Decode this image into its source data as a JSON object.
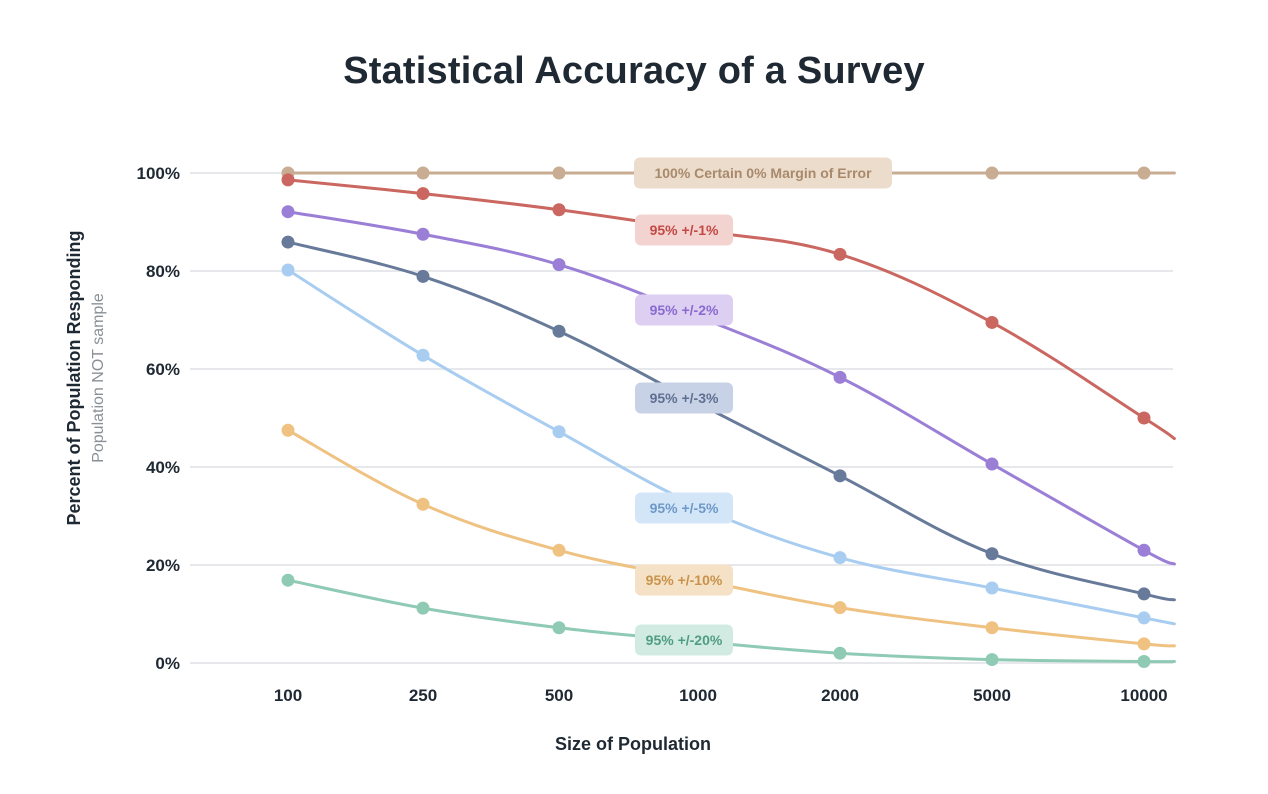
{
  "chart_data": {
    "type": "line",
    "title": "Statistical Accuracy of a Survey",
    "xlabel": "Size of Population",
    "ylabel": "Percent of Population Responding",
    "ylabel_secondary": "Population NOT sample",
    "categories": [
      "100",
      "250",
      "500",
      "1000",
      "2000",
      "5000",
      "10000"
    ],
    "y_ticks": [
      "0%",
      "20%",
      "40%",
      "60%",
      "80%",
      "100%"
    ],
    "ylim": [
      0,
      100
    ],
    "grid": true,
    "series": [
      {
        "name": "100% Certain 0% Margin of Error",
        "color": "#c9ad93",
        "label_bg": "#ecdccc",
        "label_color": "#a8896c",
        "marker_points": [
          [
            0,
            100
          ],
          [
            1,
            100
          ],
          [
            2,
            100
          ],
          [
            5,
            100
          ],
          [
            6,
            100
          ]
        ],
        "line_points": [
          [
            0,
            100
          ],
          [
            1,
            100
          ],
          [
            2,
            100
          ],
          [
            3,
            100
          ],
          [
            4,
            100
          ],
          [
            5,
            100
          ],
          [
            6,
            100
          ],
          [
            6.2,
            100
          ]
        ]
      },
      {
        "name": "95% +/-1%",
        "color": "#cb6761",
        "label_bg": "#f3d3d0",
        "label_color": "#c24944",
        "marker_points": [
          [
            0,
            98.6
          ],
          [
            1,
            95.8
          ],
          [
            2,
            92.5
          ],
          [
            4,
            83.4
          ],
          [
            5,
            69.5
          ],
          [
            6,
            50.0
          ]
        ],
        "line_points": [
          [
            0,
            98.6
          ],
          [
            1,
            95.8
          ],
          [
            2,
            92.5
          ],
          [
            3,
            88.3
          ],
          [
            4,
            83.4
          ],
          [
            5,
            69.5
          ],
          [
            6,
            50.0
          ],
          [
            6.2,
            45.8
          ]
        ]
      },
      {
        "name": "95% +/-2%",
        "color": "#9b7fd6",
        "label_bg": "#dccff1",
        "label_color": "#8a6ad0",
        "marker_points": [
          [
            0,
            92.1
          ],
          [
            1,
            87.5
          ],
          [
            2,
            81.3
          ],
          [
            4,
            58.3
          ],
          [
            5,
            40.6
          ],
          [
            6,
            23.0
          ]
        ],
        "line_points": [
          [
            0,
            92.1
          ],
          [
            1,
            87.5
          ],
          [
            2,
            81.3
          ],
          [
            3,
            70.7
          ],
          [
            4,
            58.3
          ],
          [
            5,
            40.6
          ],
          [
            6,
            23.0
          ],
          [
            6.2,
            20.2
          ]
        ]
      },
      {
        "name": "95% +/-3%",
        "color": "#687a9a",
        "label_bg": "#c8d2e7",
        "label_color": "#5f6f91",
        "marker_points": [
          [
            0,
            85.9
          ],
          [
            1,
            78.9
          ],
          [
            2,
            67.7
          ],
          [
            4,
            38.2
          ],
          [
            5,
            22.3
          ],
          [
            6,
            14.1
          ]
        ],
        "line_points": [
          [
            0,
            85.9
          ],
          [
            1,
            78.9
          ],
          [
            2,
            67.7
          ],
          [
            3,
            53.0
          ],
          [
            4,
            38.2
          ],
          [
            5,
            22.3
          ],
          [
            6,
            14.1
          ],
          [
            6.2,
            12.9
          ]
        ]
      },
      {
        "name": "95% +/-5%",
        "color": "#a8cdf0",
        "label_bg": "#d3e6f8",
        "label_color": "#6e98c8",
        "marker_points": [
          [
            0,
            80.2
          ],
          [
            1,
            62.8
          ],
          [
            2,
            47.2
          ],
          [
            4,
            21.5
          ],
          [
            5,
            15.3
          ],
          [
            6,
            9.2
          ]
        ],
        "line_points": [
          [
            0,
            80.2
          ],
          [
            1,
            62.8
          ],
          [
            2,
            47.2
          ],
          [
            3,
            32.0
          ],
          [
            4,
            21.5
          ],
          [
            5,
            15.3
          ],
          [
            6,
            9.2
          ],
          [
            6.2,
            8.0
          ]
        ]
      },
      {
        "name": "95% +/-10%",
        "color": "#efc282",
        "label_bg": "#f5e1c6",
        "label_color": "#c8924a",
        "marker_points": [
          [
            0,
            47.5
          ],
          [
            1,
            32.4
          ],
          [
            2,
            23.0
          ],
          [
            4,
            11.3
          ],
          [
            5,
            7.2
          ],
          [
            6,
            3.9
          ]
        ],
        "line_points": [
          [
            0,
            47.5
          ],
          [
            1,
            32.4
          ],
          [
            2,
            23.0
          ],
          [
            3,
            17.0
          ],
          [
            4,
            11.3
          ],
          [
            5,
            7.2
          ],
          [
            6,
            3.9
          ],
          [
            6.2,
            3.5
          ]
        ]
      },
      {
        "name": "95% +/-20%",
        "color": "#8fcab5",
        "label_bg": "#d2ebe2",
        "label_color": "#4e9d81",
        "marker_points": [
          [
            0,
            16.9
          ],
          [
            1,
            11.2
          ],
          [
            2,
            7.2
          ],
          [
            4,
            2.0
          ],
          [
            5,
            0.7
          ],
          [
            6,
            0.3
          ]
        ],
        "line_points": [
          [
            0,
            16.9
          ],
          [
            1,
            11.2
          ],
          [
            2,
            7.2
          ],
          [
            3,
            4.4
          ],
          [
            4,
            2.0
          ],
          [
            5,
            0.7
          ],
          [
            6,
            0.3
          ],
          [
            6.2,
            0.3
          ]
        ]
      }
    ]
  }
}
